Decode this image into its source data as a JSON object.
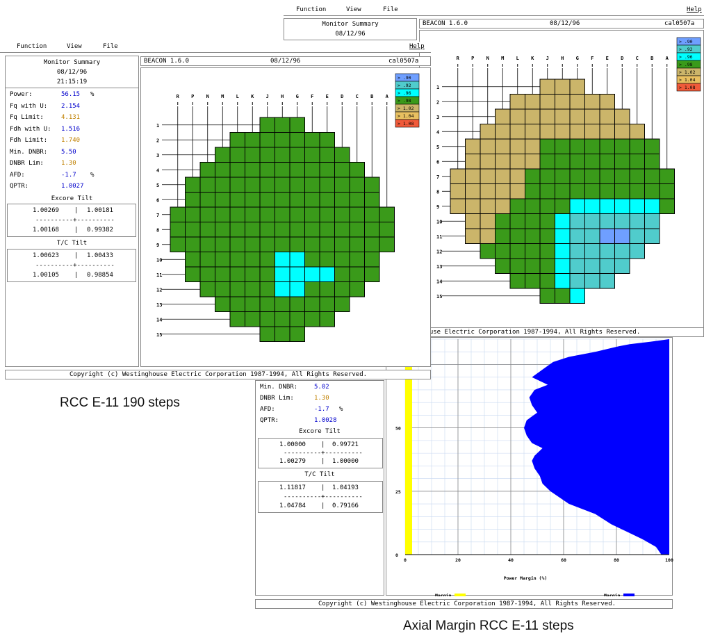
{
  "menu": {
    "function": "Function",
    "view": "View",
    "file": "File",
    "help": "Help"
  },
  "summary": {
    "title": "Monitor Summary",
    "date": "08/12/96",
    "time": "21:15:19"
  },
  "header": {
    "app": "BEACON   1.6.0",
    "date": "08/12/96",
    "id": "cal0507a"
  },
  "params_front": [
    {
      "label": "Power:",
      "value": "56.15",
      "unit": "%",
      "color": "#0000cc"
    },
    {
      "label": "Fq with U:",
      "value": "2.154",
      "unit": "",
      "color": "#0000cc"
    },
    {
      "label": "Fq Limit:",
      "value": "4.131",
      "unit": "",
      "color": "#c08000"
    },
    {
      "label": "Fdh with U:",
      "value": "1.516",
      "unit": "",
      "color": "#0000cc"
    },
    {
      "label": "Fdh Limit:",
      "value": "1.740",
      "unit": "",
      "color": "#c08000"
    },
    {
      "label": "Min. DNBR:",
      "value": "5.50",
      "unit": "",
      "color": "#0000cc"
    },
    {
      "label": "DNBR Lim:",
      "value": "1.30",
      "unit": "",
      "color": "#c08000"
    },
    {
      "label": "AFD:",
      "value": "-1.7",
      "unit": "%",
      "color": "#0000cc"
    },
    {
      "label": "QPTR:",
      "value": "1.0027",
      "unit": "",
      "color": "#0000cc"
    }
  ],
  "excore_front": {
    "title": "Excore Tilt",
    "tl": "1.00269",
    "tr": "1.00181",
    "sep": "----------+----------",
    "bl": "1.00168",
    "br": "0.99382",
    "bar": "|"
  },
  "tc_front": {
    "title": "T/C Tilt",
    "tl": "1.00623",
    "tr": "1.00433",
    "sep": "----------+----------",
    "bl": "1.00105",
    "br": "0.98854",
    "bar": "|"
  },
  "params_back": [
    {
      "label": "Min. DNBR:",
      "value": "5.02",
      "unit": "",
      "color": "#0000cc"
    },
    {
      "label": "DNBR Lim:",
      "value": "1.30",
      "unit": "",
      "color": "#c08000"
    },
    {
      "label": "AFD:",
      "value": "-1.7",
      "unit": "%",
      "color": "#0000cc"
    },
    {
      "label": "QPTR:",
      "value": "1.0028",
      "unit": "",
      "color": "#0000cc"
    }
  ],
  "excore_back": {
    "title": "Excore Tilt",
    "tl": "1.00000",
    "tr": "0.99721",
    "sep": "----------+----------",
    "bl": "1.00279",
    "br": "1.00000",
    "bar": "|"
  },
  "tc_back": {
    "title": "T/C Tilt",
    "tl": "1.11817",
    "tr": "1.04193",
    "sep": "----------+----------",
    "bl": "1.04784",
    "br": "0.79166",
    "bar": "|"
  },
  "copyright": "Copyright (c) Westinghouse Electric Corporation  1987-1994, All Rights Reserved.",
  "copyright_partial": "house Electric Corporation  1987-1994, All Rights Reserved.",
  "core_columns": [
    "R",
    "P",
    "N",
    "M",
    "L",
    "K",
    "J",
    "H",
    "G",
    "F",
    "E",
    "D",
    "C",
    "B",
    "A"
  ],
  "core_rows": [
    "1",
    "2",
    "3",
    "4",
    "5",
    "6",
    "7",
    "8",
    "9",
    "10",
    "11",
    "12",
    "13",
    "14",
    "15"
  ],
  "legend": [
    {
      "label": "> .90",
      "color": "#6f9fff"
    },
    {
      "label": "> .92",
      "color": "#50cccc"
    },
    {
      "label": "> .96",
      "color": "#00ffff"
    },
    {
      "label": "> .98",
      "color": "#3a9a1a"
    },
    {
      "label": "> 1.02",
      "color": "#cbb56a"
    },
    {
      "label": "> 1.04",
      "color": "#e8c060"
    },
    {
      "label": "> 1.08",
      "color": "#f05a3a"
    }
  ],
  "core_front_special": {
    "tan": [
      [
        1,
        3
      ]
    ],
    "cyan": [
      [
        9,
        7
      ],
      [
        9,
        8
      ],
      [
        10,
        7
      ],
      [
        10,
        8
      ],
      [
        10,
        9
      ],
      [
        11,
        7
      ],
      [
        11,
        8
      ],
      [
        10,
        10
      ]
    ]
  },
  "axial": {
    "xlabel": "Power Margin (%)",
    "yticks": [
      "0",
      "25",
      "50",
      "75"
    ],
    "xticks": [
      "0",
      "20",
      "40",
      "60",
      "80",
      "100"
    ],
    "legend_left": "Margin",
    "legend_right": "Margin"
  },
  "chart_data": {
    "type": "area",
    "title": "",
    "xlabel": "Power Margin (%)",
    "ylabel": "",
    "xlim": [
      0,
      100
    ],
    "ylim": [
      0,
      85
    ],
    "x": [
      97,
      95,
      90,
      84,
      78,
      72,
      62,
      55,
      52,
      51,
      49,
      48,
      49,
      52,
      48,
      46,
      45,
      46,
      50,
      48,
      47,
      49,
      54,
      48,
      52,
      56,
      62,
      72,
      80,
      85,
      93,
      100
    ],
    "y": [
      0,
      3,
      6,
      9,
      12,
      16,
      20,
      25,
      28,
      31,
      34,
      37,
      39,
      42,
      44,
      47,
      50,
      53,
      56,
      59,
      62,
      65,
      67,
      70,
      73,
      76,
      78,
      80,
      82,
      83,
      84,
      85
    ],
    "series": [
      {
        "name": "Margin",
        "color": "#0000ff"
      }
    ]
  },
  "captions": {
    "left": "RCC E-11 190 steps",
    "bottom": "Axial Margin RCC E-11 steps"
  }
}
